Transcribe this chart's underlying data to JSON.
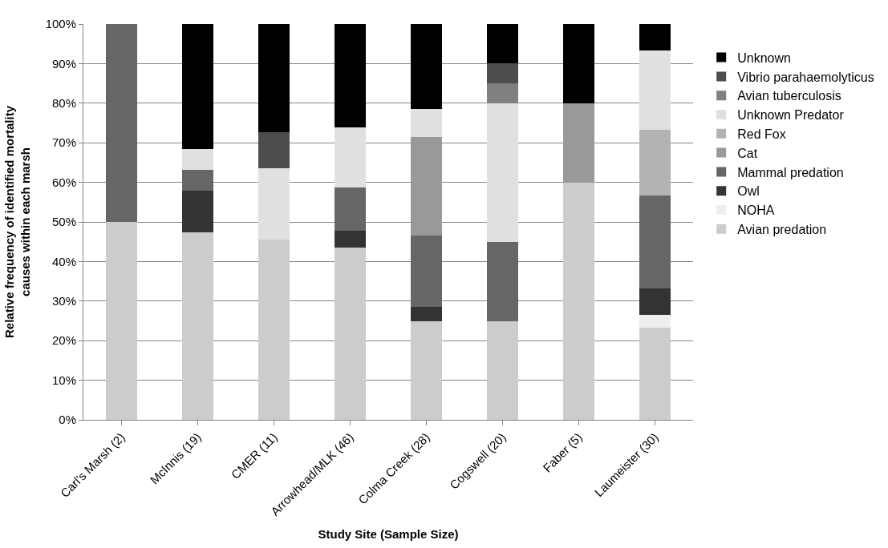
{
  "chart_data": {
    "type": "bar",
    "stacked": true,
    "xlabel": "Study Site (Sample Size)",
    "ylabel": "Relative frequency of identified mortality\ncauses within each marsh",
    "categories": [
      "Carl's Marsh (2)",
      "McInnis (19)",
      "CMER (11)",
      "Arrowhead/MLK (46)",
      "Colma Creek (28)",
      "Cogswell (20)",
      "Faber (5)",
      "Laumeister (30)"
    ],
    "series": [
      {
        "name": "Avian predation",
        "color": "#cccccc",
        "values": [
          50,
          47.4,
          45.5,
          43.5,
          25,
          25,
          60,
          23.3
        ]
      },
      {
        "name": "NOHA",
        "color": "#eeeeee",
        "values": [
          0,
          0,
          0,
          0,
          0,
          0,
          0,
          3.3
        ]
      },
      {
        "name": "Owl",
        "color": "#333333",
        "values": [
          0,
          10.5,
          0,
          4.3,
          3.6,
          0,
          0,
          6.7
        ]
      },
      {
        "name": "Mammal predation",
        "color": "#666666",
        "values": [
          50,
          5.3,
          0,
          10.9,
          17.9,
          20,
          0,
          23.3
        ]
      },
      {
        "name": "Cat",
        "color": "#999999",
        "values": [
          0,
          0,
          0,
          0,
          25,
          0,
          20,
          0
        ]
      },
      {
        "name": "Red Fox",
        "color": "#b3b3b3",
        "values": [
          0,
          0,
          0,
          0,
          0,
          0,
          0,
          16.7
        ]
      },
      {
        "name": "Unknown Predator",
        "color": "#e0e0e0",
        "values": [
          0,
          5.3,
          18.1,
          15.2,
          7.1,
          35,
          0,
          20
        ]
      },
      {
        "name": "Avian tuberculosis",
        "color": "#808080",
        "values": [
          0,
          0,
          0,
          0,
          0,
          5,
          0,
          0
        ]
      },
      {
        "name": "Vibrio parahaemolyticus",
        "color": "#4d4d4d",
        "values": [
          0,
          0,
          9.1,
          0,
          0,
          5,
          0,
          0
        ]
      },
      {
        "name": "Unknown",
        "color": "#000000",
        "values": [
          0,
          31.6,
          27.3,
          26.1,
          21.4,
          10,
          20,
          6.7
        ]
      }
    ],
    "ylim": [
      0,
      100
    ],
    "yticks": [
      {
        "value": 0,
        "label": "0%"
      },
      {
        "value": 10,
        "label": "10%"
      },
      {
        "value": 20,
        "label": "20%"
      },
      {
        "value": 30,
        "label": "30%"
      },
      {
        "value": 40,
        "label": "40%"
      },
      {
        "value": 50,
        "label": "50%"
      },
      {
        "value": 60,
        "label": "60%"
      },
      {
        "value": 70,
        "label": "70%"
      },
      {
        "value": 80,
        "label": "80%"
      },
      {
        "value": 90,
        "label": "90%"
      },
      {
        "value": 100,
        "label": "100%"
      }
    ],
    "grid": "y",
    "legend": "right"
  }
}
